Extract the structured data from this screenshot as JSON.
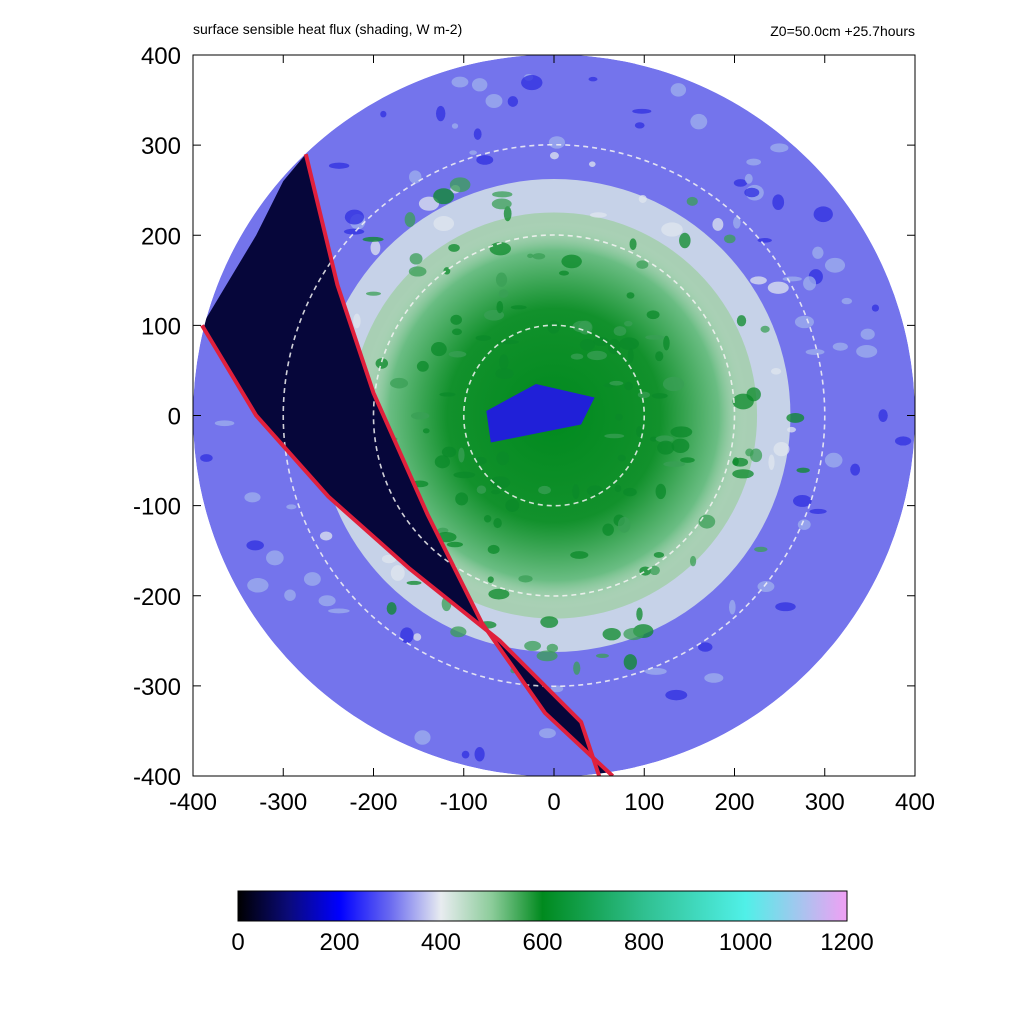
{
  "chart_data": {
    "type": "heatmap",
    "title": "surface sensible heat flux (shading, W m-2)",
    "subtitle": "Z0=50.0cm  +25.7hours",
    "xlim": [
      -400,
      400
    ],
    "ylim": [
      -400,
      400
    ],
    "x_ticks": [
      "-400",
      "-300",
      "-200",
      "-100",
      "0",
      "100",
      "200",
      "300",
      "400"
    ],
    "y_ticks": [
      "400",
      "300",
      "200",
      "100",
      "0",
      "-100",
      "-200",
      "-300",
      "-400"
    ],
    "domain_radius": 400,
    "dashed_rings_radius": [
      100,
      200,
      300
    ],
    "colorbar": {
      "min": 0,
      "max": 1200,
      "ticks": [
        "0",
        "200",
        "400",
        "600",
        "800",
        "1000",
        "1200"
      ],
      "stops": [
        {
          "value": 0,
          "color": "#000000"
        },
        {
          "value": 100,
          "color": "#0a0a7a"
        },
        {
          "value": 200,
          "color": "#0000ff"
        },
        {
          "value": 300,
          "color": "#6a6af0"
        },
        {
          "value": 400,
          "color": "#e8ecf0"
        },
        {
          "value": 500,
          "color": "#8ccc9a"
        },
        {
          "value": 600,
          "color": "#008a1e"
        },
        {
          "value": 800,
          "color": "#30c090"
        },
        {
          "value": 1000,
          "color": "#50f0e8"
        },
        {
          "value": 1200,
          "color": "#f0a0f4"
        }
      ]
    },
    "red_boundary_lines": [
      {
        "points": [
          [
            -275,
            290
          ],
          [
            -240,
            145
          ],
          [
            -200,
            25
          ],
          [
            -140,
            -110
          ],
          [
            -80,
            -230
          ],
          [
            -10,
            -330
          ],
          [
            65,
            -400
          ]
        ]
      },
      {
        "points": [
          [
            -390,
            100
          ],
          [
            -330,
            0
          ],
          [
            -250,
            -90
          ],
          [
            -160,
            -170
          ],
          [
            -60,
            -250
          ],
          [
            30,
            -340
          ],
          [
            50,
            -400
          ]
        ]
      }
    ]
  }
}
